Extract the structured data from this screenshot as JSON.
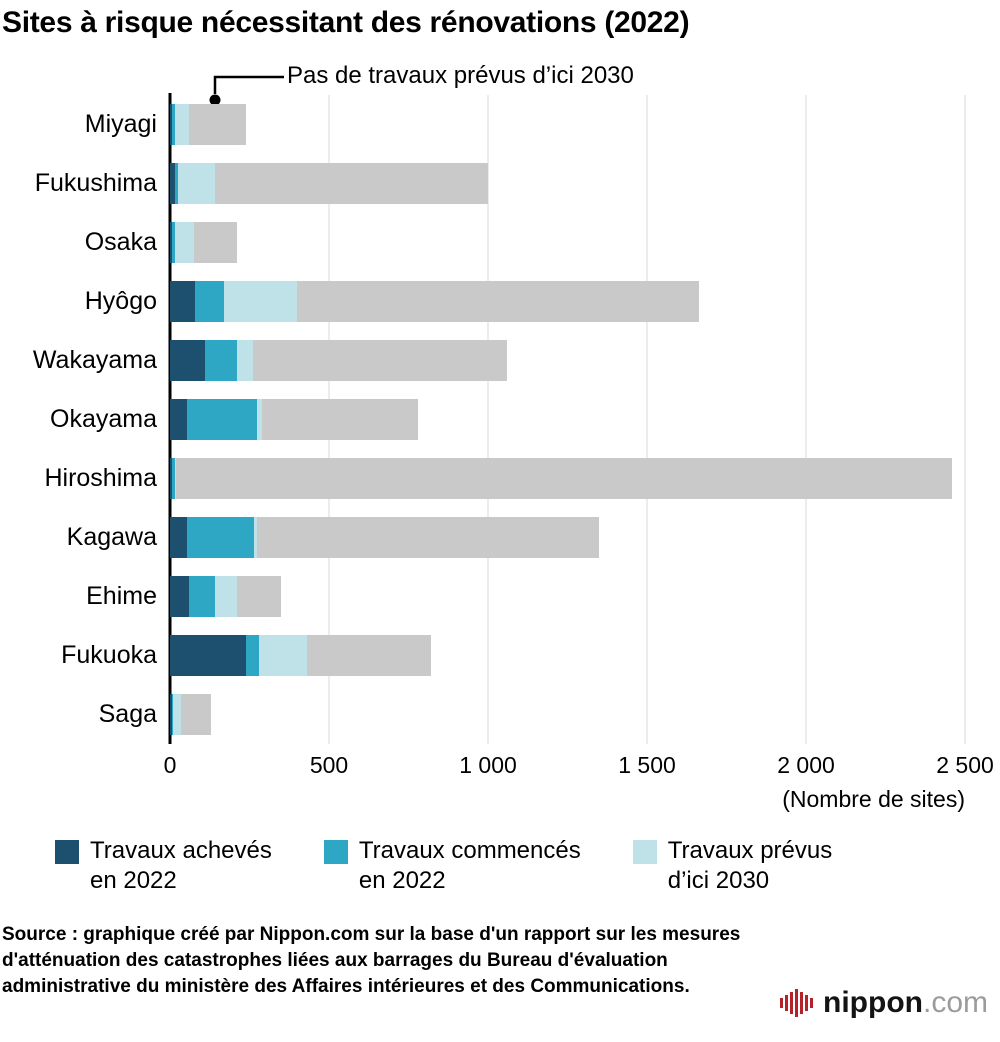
{
  "title": "Sites à risque nécessitant des rénovations (2022)",
  "annotation": {
    "label": "Pas de travaux prévus d’ici 2030"
  },
  "axis_note": "(Nombre de sites)",
  "legend": [
    {
      "line1": "Travaux achevés",
      "line2": "en 2022",
      "color": "#1d4f6e"
    },
    {
      "line1": "Travaux commencés",
      "line2": "en 2022",
      "color": "#2ea7c4"
    },
    {
      "line1": "Travaux prévus",
      "line2": "d’ici 2030",
      "color": "#bfe2e9"
    }
  ],
  "source_text": "Source : graphique créé par Nippon.com sur la base d'un rapport sur les mesures d'atténuation des catastrophes liées aux barrages du Bureau d'évaluation administrative du ministère des Affaires intérieures et des Communications.",
  "logo": {
    "name": "nippon",
    "domain": ".com"
  },
  "chart_data": {
    "type": "bar",
    "orientation": "horizontal",
    "title": "Sites à risque nécessitant des rénovations (2022)",
    "categories": [
      "Miyagi",
      "Fukushima",
      "Osaka",
      "Hyôgo",
      "Wakayama",
      "Okayama",
      "Hiroshima",
      "Kagawa",
      "Ehime",
      "Fukuoka",
      "Saga"
    ],
    "series": [
      {
        "name": "Travaux achevés en 2022",
        "color": "#1d4f6e",
        "values": [
          5,
          15,
          5,
          80,
          110,
          55,
          5,
          55,
          60,
          240,
          5
        ]
      },
      {
        "name": "Travaux commencés en 2022",
        "color": "#2ea7c4",
        "values": [
          10,
          10,
          10,
          90,
          100,
          220,
          10,
          210,
          80,
          40,
          5
        ]
      },
      {
        "name": "Travaux prévus d’ici 2030",
        "color": "#bfe2e9",
        "values": [
          45,
          115,
          60,
          230,
          50,
          15,
          5,
          10,
          70,
          150,
          25
        ]
      },
      {
        "name": "Pas de travaux prévus d’ici 2030",
        "color": "#c9c9c9",
        "values": [
          180,
          860,
          135,
          1265,
          800,
          490,
          2440,
          1075,
          140,
          390,
          95
        ]
      }
    ],
    "xlim": [
      0,
      2500
    ],
    "xticks": [
      0,
      500,
      1000,
      1500,
      2000,
      2500
    ],
    "xtick_labels": [
      "0",
      "500",
      "1 000",
      "1 500",
      "2 000",
      "2 500"
    ],
    "xlabel": "(Nombre de sites)",
    "grid": true,
    "legend_position": "bottom"
  }
}
